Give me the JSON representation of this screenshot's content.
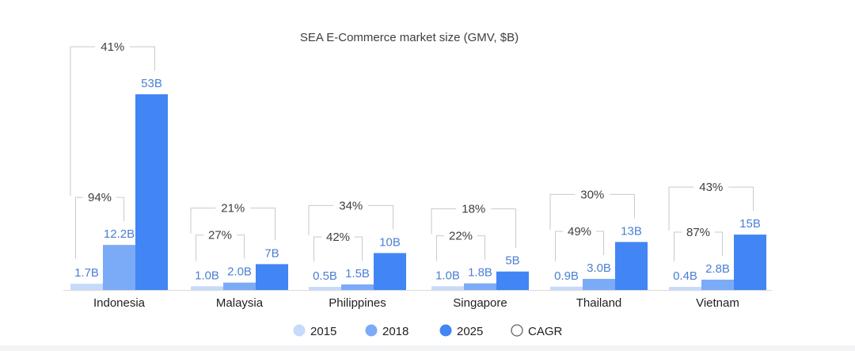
{
  "chart_data": {
    "type": "bar",
    "title": "SEA E-Commerce market size (GMV, $B)",
    "xlabel": "",
    "ylabel": "",
    "ylim": [
      0,
      53
    ],
    "grid": false,
    "legend_position": "bottom",
    "categories": [
      "Indonesia",
      "Malaysia",
      "Philippines",
      "Singapore",
      "Thailand",
      "Vietnam"
    ],
    "series": [
      {
        "name": "2015",
        "color": "#c6dafc",
        "values": [
          1.7,
          1.0,
          0.5,
          1.0,
          0.9,
          0.4
        ],
        "labels": [
          "1.7B",
          "1.0B",
          "0.5B",
          "1.0B",
          "0.9B",
          "0.4B"
        ]
      },
      {
        "name": "2018",
        "color": "#7baaf7",
        "values": [
          12.2,
          2.0,
          1.5,
          1.8,
          3.0,
          2.8
        ],
        "labels": [
          "12.2B",
          "2.0B",
          "1.5B",
          "1.8B",
          "3.0B",
          "2.8B"
        ]
      },
      {
        "name": "2025",
        "color": "#4285f4",
        "values": [
          53,
          7,
          10,
          5,
          13,
          15
        ],
        "labels": [
          "53B",
          "7B",
          "10B",
          "5B",
          "13B",
          "15B"
        ]
      }
    ],
    "cagr_2015_2018": [
      "94%",
      "27%",
      "42%",
      "22%",
      "49%",
      "87%"
    ],
    "cagr_2015_2025": [
      "41%",
      "21%",
      "34%",
      "18%",
      "30%",
      "43%"
    ],
    "legend": [
      "2015",
      "2018",
      "2025",
      "CAGR"
    ]
  },
  "colors": {
    "label_blue": "#4a7fd4",
    "text_dark": "#3c4043",
    "bracket": "#c8cacc"
  }
}
